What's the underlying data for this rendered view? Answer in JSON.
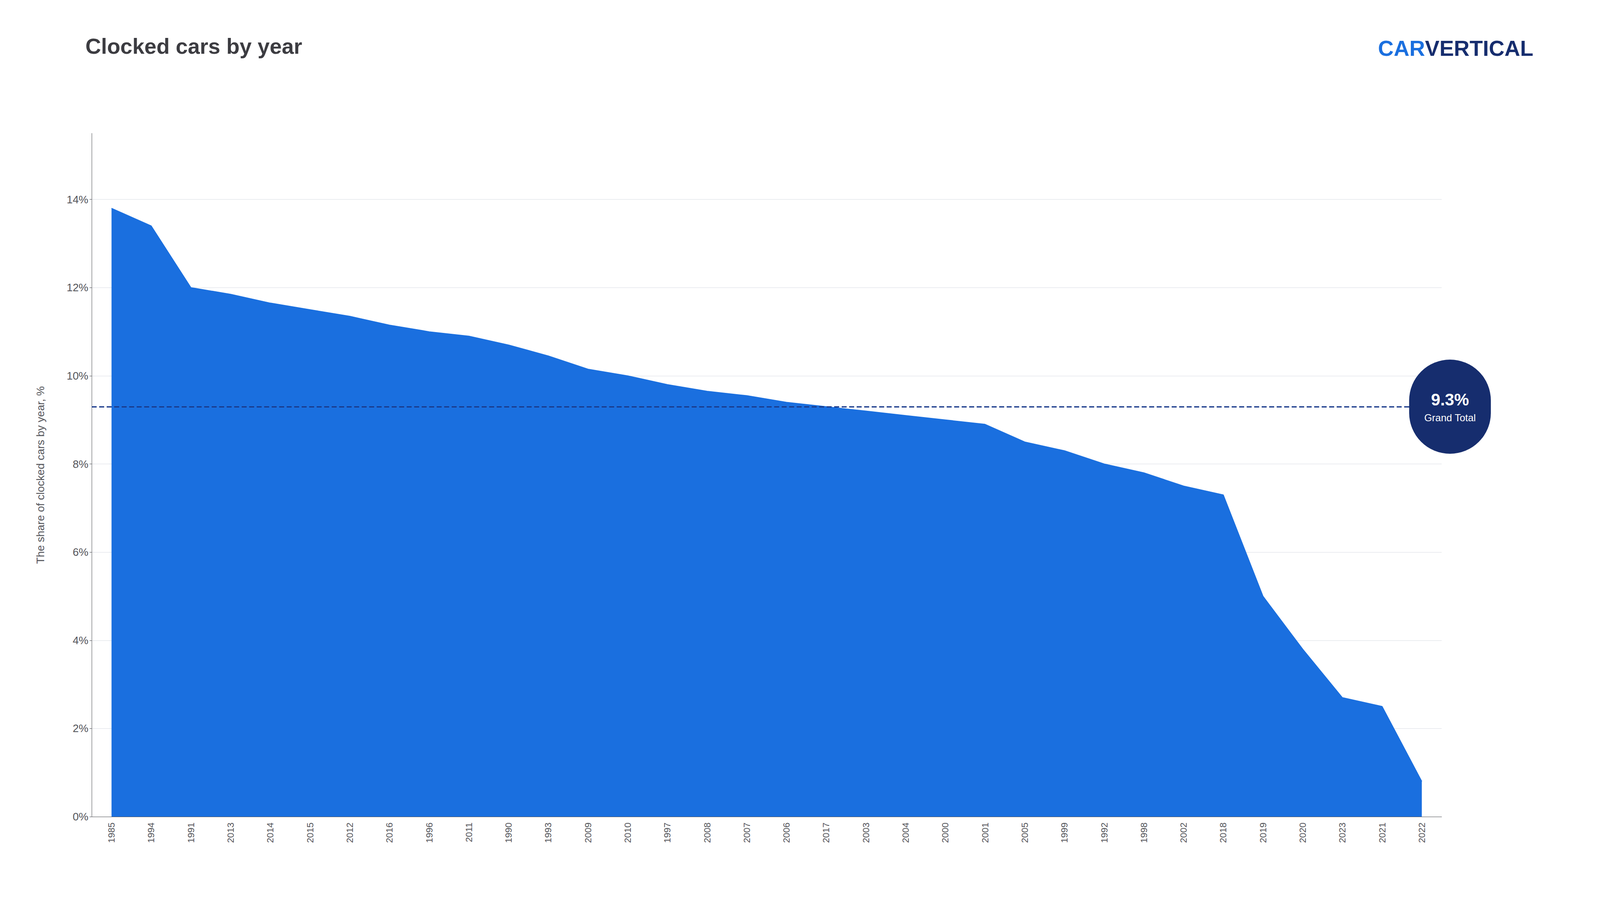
{
  "chart_data": {
    "type": "area",
    "title": "Clocked cars by year",
    "ylabel": "The share of clocked cars by year, %",
    "categories": [
      "1985",
      "1994",
      "1991",
      "2013",
      "2014",
      "2015",
      "2012",
      "2016",
      "1996",
      "2011",
      "1990",
      "1993",
      "2009",
      "2010",
      "1997",
      "2008",
      "2007",
      "2006",
      "2017",
      "2003",
      "2004",
      "2000",
      "2001",
      "2005",
      "1999",
      "1992",
      "1998",
      "2002",
      "2018",
      "2019",
      "2020",
      "2023",
      "2021",
      "2022"
    ],
    "values": [
      13.8,
      13.4,
      12.0,
      11.85,
      11.65,
      11.5,
      11.35,
      11.15,
      11.0,
      10.9,
      10.7,
      10.45,
      10.15,
      10.0,
      9.8,
      9.65,
      9.55,
      9.4,
      9.3,
      9.2,
      9.1,
      9.0,
      8.9,
      8.5,
      8.3,
      8.0,
      7.8,
      7.5,
      7.3,
      5.0,
      3.8,
      2.7,
      2.5,
      0.8
    ],
    "color": "#1a6fdf",
    "ylim": [
      0,
      15.5
    ],
    "yticks": [
      {
        "value": 0,
        "label": "0%"
      },
      {
        "value": 2,
        "label": "2%"
      },
      {
        "value": 4,
        "label": "4%"
      },
      {
        "value": 6,
        "label": "6%"
      },
      {
        "value": 8,
        "label": "8%"
      },
      {
        "value": 10,
        "label": "10%"
      },
      {
        "value": 12,
        "label": "12%"
      },
      {
        "value": 14,
        "label": "14%"
      }
    ],
    "grid": true,
    "reference_line": {
      "value": 9.3,
      "label": "9.3%",
      "sublabel": "Grand Total",
      "color": "#1a3a8a",
      "label_color": "#162d6e",
      "line_style": "dashed"
    },
    "annotations": [
      {
        "text": "CAR",
        "color": "#1a6fdf"
      },
      {
        "text": "VERTICAL",
        "color": "#162d6e"
      }
    ]
  }
}
